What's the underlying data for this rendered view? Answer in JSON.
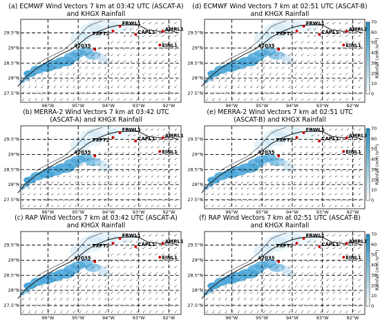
{
  "panels": [
    {
      "id": "a",
      "title_line1": "(a) ECMWF Wind Vectors 7 km at 03:42 UTC (ASCAT-A)",
      "title_line2": "and KHGX Rainfall",
      "field": "smooth"
    },
    {
      "id": "d",
      "title_line1": "(d) ECMWF Wind Vectors 7 km at 02:51 UTC (ASCAT-B)",
      "title_line2": "and KHGX Rainfall",
      "field": "smooth"
    },
    {
      "id": "b",
      "title_line1": "(b) MERRA-2 Wind Vectors 7 km at 03:42 UTC",
      "title_line2": "(ASCAT-A) and KHGX Rainfall",
      "field": "grid"
    },
    {
      "id": "e",
      "title_line1": "(e) MERRA-2 Wind Vectors 7 km at 02:51 UTC",
      "title_line2": "(ASCAT-B) and KHGX Rainfall",
      "field": "grid"
    },
    {
      "id": "c",
      "title_line1": "(c) RAP Wind Vectors 7 km at 03:42 UTC (ASCAT-A)",
      "title_line2": "and KHGX Rainfall",
      "field": "smooth"
    },
    {
      "id": "f",
      "title_line1": "(f) RAP Wind Vectors 7 km at 02:51 UTC (ASCAT-B)",
      "title_line2": "and KHGX Rainfall",
      "field": "smooth"
    }
  ],
  "axes": {
    "lat_ticks": [
      "29.5°N",
      "29°N",
      "28.5°N",
      "28°N",
      "27.5°N"
    ],
    "lon_ticks": [
      "96°W",
      "95°W",
      "94°W",
      "93°W",
      "92°W"
    ]
  },
  "stations": [
    "FRWL1",
    "CAPL1",
    "AMRL1",
    "TXPT2",
    "EINL1",
    "42035"
  ],
  "colorbar": {
    "label": "Rainfall (mm hr⁻¹)",
    "ticks": [
      "0",
      "10",
      "20",
      "30",
      "40",
      "50",
      "60",
      "70"
    ],
    "color_low": "#ffffff",
    "color_high": "#1f8fc0"
  },
  "colors": {
    "rain": "#4aa6d8",
    "rain_light": "#bfe0f3",
    "station_marker": "#cc0000",
    "vector": "#333333"
  }
}
